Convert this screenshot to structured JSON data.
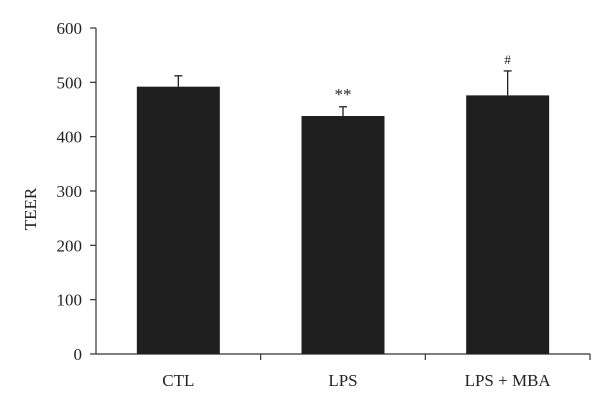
{
  "chart_data": {
    "type": "bar",
    "title": "",
    "xlabel": "",
    "ylabel": "TEER",
    "ylim": [
      0,
      600
    ],
    "yticks": [
      0,
      100,
      200,
      300,
      400,
      500,
      600
    ],
    "ytick_labels": [
      "0",
      "100",
      "200",
      "300",
      "400",
      "500",
      "600"
    ],
    "categories": [
      "CTL",
      "LPS",
      "LPS + MBA"
    ],
    "values": [
      492,
      438,
      476
    ],
    "errors": [
      20,
      17,
      45
    ],
    "annotations": [
      "",
      "**",
      "#"
    ],
    "bar_color": "#1f1f1f",
    "grid": false
  }
}
